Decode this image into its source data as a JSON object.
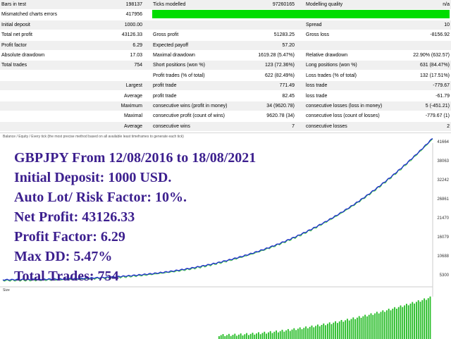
{
  "report": {
    "rows": [
      {
        "l1": "Bars in test",
        "v1": "198137",
        "l2": "Ticks modelled",
        "v2": "97260165",
        "l3": "Modelling quality",
        "v3": "n/a",
        "shade": true
      },
      {
        "l1": "Mismatched charts errors",
        "v1": "417956",
        "l2": "",
        "v2": "",
        "l3": "",
        "v3": "",
        "shade": false,
        "bar": true
      },
      {
        "l1": "Initial deposit",
        "v1": "1000.00",
        "l2": "",
        "v2": "",
        "l3": "Spread",
        "v3": "10",
        "shade": true
      },
      {
        "l1": "Total net profit",
        "v1": "43126.33",
        "l2": "Gross profit",
        "v2": "51283.25",
        "l3": "Gross loss",
        "v3": "-8156.92",
        "shade": false
      },
      {
        "l1": "Profit factor",
        "v1": "6.29",
        "l2": "Expected payoff",
        "v2": "57.20",
        "l3": "",
        "v3": "",
        "shade": true
      },
      {
        "l1": "Absolute drawdown",
        "v1": "17.03",
        "l2": "Maximal drawdown",
        "v2": "1619.28 (5.47%)",
        "l3": "Relative drawdown",
        "v3": "22.90% (632.57)",
        "shade": false
      },
      {
        "l1": "Total trades",
        "v1": "754",
        "l2": "Short positions (won %)",
        "v2": "123 (72.36%)",
        "l3": "Long positions (won %)",
        "v3": "631 (84.47%)",
        "shade": true
      },
      {
        "l1": "",
        "v1": "",
        "l2": "Profit trades (% of total)",
        "v2": "622 (82.49%)",
        "l3": "Loss trades (% of total)",
        "v3": "132 (17.51%)",
        "shade": false
      },
      {
        "l1": "",
        "v1": "Largest",
        "l2": "profit trade",
        "v2": "771.49",
        "l3": "loss trade",
        "v3": "-779.67",
        "shade": true
      },
      {
        "l1": "",
        "v1": "Average",
        "l2": "profit trade",
        "v2": "82.45",
        "l3": "loss trade",
        "v3": "-61.79",
        "shade": false
      },
      {
        "l1": "",
        "v1": "Maximum",
        "l2": "consecutive wins (profit in money)",
        "v2": "34 (9620.78)",
        "l3": "consecutive losses (loss in money)",
        "v3": "5 (-451.21)",
        "shade": true
      },
      {
        "l1": "",
        "v1": "Maximal",
        "l2": "consecutive profit (count of wins)",
        "v2": "9620.78 (34)",
        "l3": "consecutive loss (count of losses)",
        "v3": "-779.67 (1)",
        "shade": false
      },
      {
        "l1": "",
        "v1": "Average",
        "l2": "consecutive wins",
        "v2": "7",
        "l3": "consecutive losses",
        "v3": "2",
        "shade": true
      }
    ]
  },
  "chart": {
    "caption": "Balance / Equity / Every tick (the most precise method based on all available least timeframes to generate each tick)",
    "overlay_lines": [
      "GBPJPY From 12/08/2016 to 18/08/2021",
      "Initial Deposit: 1000 USD.",
      "Auto Lot/ Risk Factor: 10%.",
      "Net Profit: 43126.33",
      "Profit Factor: 6.29",
      "Max DD: 5.47%",
      "Total Trades: 754"
    ],
    "y_axis_labels": [
      "41664",
      "38063",
      "32242",
      "26861",
      "21470",
      "16079",
      "10688",
      "5300"
    ],
    "footer_label": "Size",
    "colors": {
      "balance": "#2233cc",
      "equity": "#44cc44",
      "volume": "#22bb22",
      "text": "#3c1f8e"
    }
  }
}
